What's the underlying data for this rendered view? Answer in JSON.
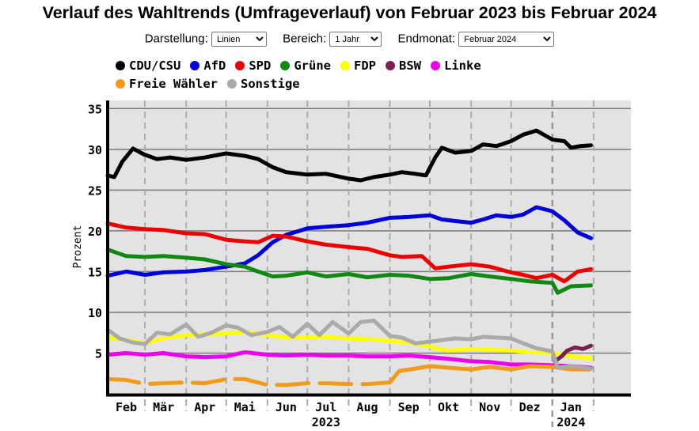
{
  "title": "Verlauf des Wahltrends (Umfrageverlauf) von Februar 2023 bis Februar 2024",
  "controls": {
    "darstellung_label": "Darstellung:",
    "darstellung_value": "Linien",
    "bereich_label": "Bereich:",
    "bereich_value": "1 Jahr",
    "endmonat_label": "Endmonat:",
    "endmonat_value": "Februar 2024"
  },
  "colors": {
    "plot_bg": "#e3e3e3",
    "cdu": "#000000",
    "afd": "#0000dd",
    "spd": "#ee0000",
    "gruene": "#118811",
    "fdp": "#ffff00",
    "bsw": "#7a1f4f",
    "linke": "#ee00ee",
    "fw": "#f29a1a",
    "sonstige": "#aaaaaa"
  },
  "chart_data": {
    "type": "line",
    "ylabel": "Prozent",
    "ylim": [
      0,
      36
    ],
    "yticks": [
      5,
      10,
      15,
      20,
      25,
      30,
      35
    ],
    "grid": true,
    "x_domain": [
      "2023-02-01",
      "2024-02-29"
    ],
    "month_labels": [
      {
        "label": "Feb",
        "date": "2023-02-15"
      },
      {
        "label": "Mär",
        "date": "2023-03-15"
      },
      {
        "label": "Apr",
        "date": "2023-04-15"
      },
      {
        "label": "Mai",
        "date": "2023-05-15"
      },
      {
        "label": "Jun",
        "date": "2023-06-15"
      },
      {
        "label": "Jul",
        "date": "2023-07-15"
      },
      {
        "label": "Aug",
        "date": "2023-08-15"
      },
      {
        "label": "Sep",
        "date": "2023-09-15"
      },
      {
        "label": "Okt",
        "date": "2023-10-15"
      },
      {
        "label": "Nov",
        "date": "2023-11-15"
      },
      {
        "label": "Dez",
        "date": "2023-12-15"
      },
      {
        "label": "Jan",
        "date": "2024-01-15"
      }
    ],
    "year_labels": [
      {
        "label": "2023",
        "date": "2023-07-15"
      },
      {
        "label": "2024",
        "date": "2024-01-15"
      }
    ],
    "legend": [
      "CDU/CSU",
      "AfD",
      "SPD",
      "Grüne",
      "FDP",
      "BSW",
      "Linke",
      "Freie Wähler",
      "Sonstige"
    ],
    "series": [
      {
        "name": "CDU/CSU",
        "points": [
          [
            "2023-02-01",
            26.8
          ],
          [
            "2023-02-06",
            26.6
          ],
          [
            "2023-02-12",
            28.5
          ],
          [
            "2023-02-20",
            30.1
          ],
          [
            "2023-02-28",
            29.4
          ],
          [
            "2023-03-10",
            28.8
          ],
          [
            "2023-03-20",
            29.0
          ],
          [
            "2023-04-01",
            28.7
          ],
          [
            "2023-04-15",
            29.0
          ],
          [
            "2023-05-01",
            29.5
          ],
          [
            "2023-05-15",
            29.2
          ],
          [
            "2023-05-25",
            28.8
          ],
          [
            "2023-06-05",
            27.8
          ],
          [
            "2023-06-15",
            27.2
          ],
          [
            "2023-07-01",
            26.9
          ],
          [
            "2023-07-15",
            27.0
          ],
          [
            "2023-08-01",
            26.4
          ],
          [
            "2023-08-10",
            26.2
          ],
          [
            "2023-08-20",
            26.6
          ],
          [
            "2023-09-01",
            26.9
          ],
          [
            "2023-09-10",
            27.2
          ],
          [
            "2023-09-20",
            27.0
          ],
          [
            "2023-09-28",
            26.8
          ],
          [
            "2023-10-05",
            29.0
          ],
          [
            "2023-10-10",
            30.2
          ],
          [
            "2023-10-20",
            29.6
          ],
          [
            "2023-11-01",
            29.8
          ],
          [
            "2023-11-10",
            30.6
          ],
          [
            "2023-11-20",
            30.4
          ],
          [
            "2023-12-01",
            31.0
          ],
          [
            "2023-12-10",
            31.8
          ],
          [
            "2023-12-20",
            32.3
          ],
          [
            "2024-01-01",
            31.2
          ],
          [
            "2024-01-10",
            31.0
          ],
          [
            "2024-01-15",
            30.2
          ],
          [
            "2024-01-22",
            30.4
          ],
          [
            "2024-01-30",
            30.5
          ]
        ]
      },
      {
        "name": "AfD",
        "points": [
          [
            "2023-02-01",
            14.5
          ],
          [
            "2023-02-15",
            15.0
          ],
          [
            "2023-03-01",
            14.6
          ],
          [
            "2023-03-15",
            14.9
          ],
          [
            "2023-04-01",
            15.0
          ],
          [
            "2023-04-15",
            15.2
          ],
          [
            "2023-05-01",
            15.6
          ],
          [
            "2023-05-15",
            16.0
          ],
          [
            "2023-05-25",
            17.0
          ],
          [
            "2023-06-05",
            18.6
          ],
          [
            "2023-06-15",
            19.5
          ],
          [
            "2023-07-01",
            20.3
          ],
          [
            "2023-07-15",
            20.5
          ],
          [
            "2023-08-01",
            20.7
          ],
          [
            "2023-08-15",
            21.0
          ],
          [
            "2023-09-01",
            21.6
          ],
          [
            "2023-09-15",
            21.7
          ],
          [
            "2023-10-01",
            21.9
          ],
          [
            "2023-10-10",
            21.4
          ],
          [
            "2023-10-20",
            21.2
          ],
          [
            "2023-11-01",
            21.0
          ],
          [
            "2023-11-10",
            21.4
          ],
          [
            "2023-11-20",
            21.9
          ],
          [
            "2023-12-01",
            21.7
          ],
          [
            "2023-12-10",
            22.0
          ],
          [
            "2023-12-20",
            22.9
          ],
          [
            "2024-01-01",
            22.4
          ],
          [
            "2024-01-10",
            21.3
          ],
          [
            "2024-01-20",
            19.8
          ],
          [
            "2024-01-30",
            19.1
          ]
        ]
      },
      {
        "name": "SPD",
        "points": [
          [
            "2023-02-01",
            20.9
          ],
          [
            "2023-02-15",
            20.4
          ],
          [
            "2023-03-01",
            20.2
          ],
          [
            "2023-03-15",
            20.1
          ],
          [
            "2023-04-01",
            19.7
          ],
          [
            "2023-04-15",
            19.6
          ],
          [
            "2023-05-01",
            18.9
          ],
          [
            "2023-05-15",
            18.7
          ],
          [
            "2023-05-25",
            18.6
          ],
          [
            "2023-06-05",
            19.4
          ],
          [
            "2023-06-15",
            19.3
          ],
          [
            "2023-07-01",
            18.7
          ],
          [
            "2023-07-15",
            18.3
          ],
          [
            "2023-08-01",
            18.0
          ],
          [
            "2023-08-15",
            17.8
          ],
          [
            "2023-09-01",
            17.0
          ],
          [
            "2023-09-10",
            16.8
          ],
          [
            "2023-09-25",
            16.9
          ],
          [
            "2023-10-05",
            15.4
          ],
          [
            "2023-10-15",
            15.6
          ],
          [
            "2023-11-01",
            15.9
          ],
          [
            "2023-11-15",
            15.6
          ],
          [
            "2023-12-01",
            14.9
          ],
          [
            "2023-12-10",
            14.6
          ],
          [
            "2023-12-20",
            14.2
          ],
          [
            "2024-01-01",
            14.6
          ],
          [
            "2024-01-10",
            13.8
          ],
          [
            "2024-01-20",
            15.0
          ],
          [
            "2024-01-30",
            15.3
          ]
        ]
      },
      {
        "name": "Grüne",
        "points": [
          [
            "2023-02-01",
            17.7
          ],
          [
            "2023-02-15",
            16.9
          ],
          [
            "2023-03-01",
            16.8
          ],
          [
            "2023-03-15",
            16.9
          ],
          [
            "2023-04-01",
            16.7
          ],
          [
            "2023-04-15",
            16.5
          ],
          [
            "2023-05-01",
            15.9
          ],
          [
            "2023-05-15",
            15.6
          ],
          [
            "2023-05-25",
            15.0
          ],
          [
            "2023-06-05",
            14.4
          ],
          [
            "2023-06-15",
            14.5
          ],
          [
            "2023-07-01",
            14.9
          ],
          [
            "2023-07-15",
            14.4
          ],
          [
            "2023-08-01",
            14.7
          ],
          [
            "2023-08-15",
            14.3
          ],
          [
            "2023-09-01",
            14.6
          ],
          [
            "2023-09-15",
            14.5
          ],
          [
            "2023-10-01",
            14.1
          ],
          [
            "2023-10-15",
            14.2
          ],
          [
            "2023-11-01",
            14.7
          ],
          [
            "2023-11-15",
            14.4
          ],
          [
            "2023-12-01",
            14.1
          ],
          [
            "2023-12-15",
            13.8
          ],
          [
            "2024-01-01",
            13.6
          ],
          [
            "2024-01-05",
            12.4
          ],
          [
            "2024-01-15",
            13.2
          ],
          [
            "2024-01-30",
            13.3
          ]
        ]
      },
      {
        "name": "FDP",
        "points": [
          [
            "2023-02-01",
            6.9
          ],
          [
            "2023-02-15",
            6.6
          ],
          [
            "2023-03-01",
            6.2
          ],
          [
            "2023-03-15",
            6.8
          ],
          [
            "2023-04-01",
            7.2
          ],
          [
            "2023-04-15",
            7.3
          ],
          [
            "2023-05-01",
            7.4
          ],
          [
            "2023-05-15",
            7.6
          ],
          [
            "2023-06-01",
            7.2
          ],
          [
            "2023-06-15",
            6.9
          ],
          [
            "2023-07-01",
            6.9
          ],
          [
            "2023-07-15",
            7.0
          ],
          [
            "2023-08-01",
            6.8
          ],
          [
            "2023-08-15",
            6.7
          ],
          [
            "2023-09-01",
            6.5
          ],
          [
            "2023-09-15",
            6.3
          ],
          [
            "2023-10-01",
            5.8
          ],
          [
            "2023-10-15",
            5.3
          ],
          [
            "2023-11-01",
            5.5
          ],
          [
            "2023-11-15",
            5.4
          ],
          [
            "2023-12-01",
            5.3
          ],
          [
            "2023-12-15",
            5.1
          ],
          [
            "2024-01-01",
            5.0
          ],
          [
            "2024-01-15",
            4.6
          ],
          [
            "2024-01-30",
            4.4
          ]
        ]
      },
      {
        "name": "BSW",
        "points": [
          [
            "2024-01-03",
            4.0
          ],
          [
            "2024-01-08",
            4.6
          ],
          [
            "2024-01-12",
            5.3
          ],
          [
            "2024-01-18",
            5.7
          ],
          [
            "2024-01-24",
            5.5
          ],
          [
            "2024-01-30",
            5.9
          ]
        ]
      },
      {
        "name": "Linke",
        "points": [
          [
            "2023-02-01",
            4.8
          ],
          [
            "2023-02-15",
            5.0
          ],
          [
            "2023-03-01",
            4.8
          ],
          [
            "2023-03-15",
            5.0
          ],
          [
            "2023-04-01",
            4.6
          ],
          [
            "2023-04-15",
            4.5
          ],
          [
            "2023-05-01",
            4.6
          ],
          [
            "2023-05-15",
            5.1
          ],
          [
            "2023-06-01",
            4.8
          ],
          [
            "2023-06-15",
            4.7
          ],
          [
            "2023-07-01",
            4.8
          ],
          [
            "2023-07-15",
            4.7
          ],
          [
            "2023-08-01",
            4.7
          ],
          [
            "2023-08-15",
            4.6
          ],
          [
            "2023-09-01",
            4.6
          ],
          [
            "2023-09-15",
            4.7
          ],
          [
            "2023-10-01",
            4.5
          ],
          [
            "2023-10-15",
            4.3
          ],
          [
            "2023-11-01",
            4.0
          ],
          [
            "2023-11-15",
            3.9
          ],
          [
            "2023-12-01",
            3.6
          ],
          [
            "2023-12-15",
            3.6
          ],
          [
            "2024-01-01",
            3.5
          ],
          [
            "2024-01-15",
            3.4
          ],
          [
            "2024-01-30",
            3.2
          ]
        ]
      },
      {
        "name": "Freie Wähler",
        "points": [
          [
            "2023-02-01",
            1.8
          ],
          [
            "2023-02-15",
            1.7
          ],
          [
            "2023-03-01",
            1.2
          ],
          [
            "2023-03-15",
            1.3
          ],
          [
            "2023-04-01",
            1.4
          ],
          [
            "2023-04-15",
            1.3
          ],
          [
            "2023-05-01",
            1.8
          ],
          [
            "2023-05-15",
            1.8
          ],
          [
            "2023-06-01",
            1.1
          ],
          [
            "2023-06-15",
            1.1
          ],
          [
            "2023-07-01",
            1.3
          ],
          [
            "2023-07-15",
            1.3
          ],
          [
            "2023-08-01",
            1.2
          ],
          [
            "2023-08-15",
            1.2
          ],
          [
            "2023-09-01",
            1.4
          ],
          [
            "2023-09-08",
            2.8
          ],
          [
            "2023-09-20",
            3.1
          ],
          [
            "2023-10-01",
            3.4
          ],
          [
            "2023-10-15",
            3.2
          ],
          [
            "2023-11-01",
            3.0
          ],
          [
            "2023-11-15",
            3.3
          ],
          [
            "2023-12-01",
            3.0
          ],
          [
            "2023-12-15",
            3.4
          ],
          [
            "2024-01-01",
            3.3
          ],
          [
            "2024-01-15",
            3.0
          ],
          [
            "2024-01-30",
            3.0
          ]
        ]
      },
      {
        "name": "Sonstige",
        "points": [
          [
            "2023-02-01",
            7.9
          ],
          [
            "2023-02-10",
            6.8
          ],
          [
            "2023-02-20",
            6.3
          ],
          [
            "2023-03-01",
            6.1
          ],
          [
            "2023-03-10",
            7.5
          ],
          [
            "2023-03-20",
            7.3
          ],
          [
            "2023-04-01",
            8.5
          ],
          [
            "2023-04-10",
            7.0
          ],
          [
            "2023-04-20",
            7.5
          ],
          [
            "2023-05-01",
            8.4
          ],
          [
            "2023-05-10",
            8.1
          ],
          [
            "2023-05-20",
            7.2
          ],
          [
            "2023-06-01",
            7.6
          ],
          [
            "2023-06-10",
            8.2
          ],
          [
            "2023-06-20",
            7.0
          ],
          [
            "2023-07-01",
            8.6
          ],
          [
            "2023-07-10",
            7.2
          ],
          [
            "2023-07-20",
            8.8
          ],
          [
            "2023-08-01",
            7.4
          ],
          [
            "2023-08-10",
            8.8
          ],
          [
            "2023-08-20",
            9.0
          ],
          [
            "2023-09-01",
            7.1
          ],
          [
            "2023-09-10",
            6.9
          ],
          [
            "2023-09-20",
            6.2
          ],
          [
            "2023-10-01",
            6.4
          ],
          [
            "2023-10-10",
            6.6
          ],
          [
            "2023-10-20",
            6.8
          ],
          [
            "2023-11-01",
            6.7
          ],
          [
            "2023-11-10",
            7.0
          ],
          [
            "2023-11-20",
            6.9
          ],
          [
            "2023-12-01",
            6.8
          ],
          [
            "2023-12-10",
            6.2
          ],
          [
            "2023-12-20",
            5.6
          ],
          [
            "2024-01-01",
            5.2
          ],
          [
            "2024-01-05",
            3.2
          ],
          [
            "2024-01-15",
            3.4
          ],
          [
            "2024-01-30",
            3.1
          ]
        ]
      }
    ]
  }
}
